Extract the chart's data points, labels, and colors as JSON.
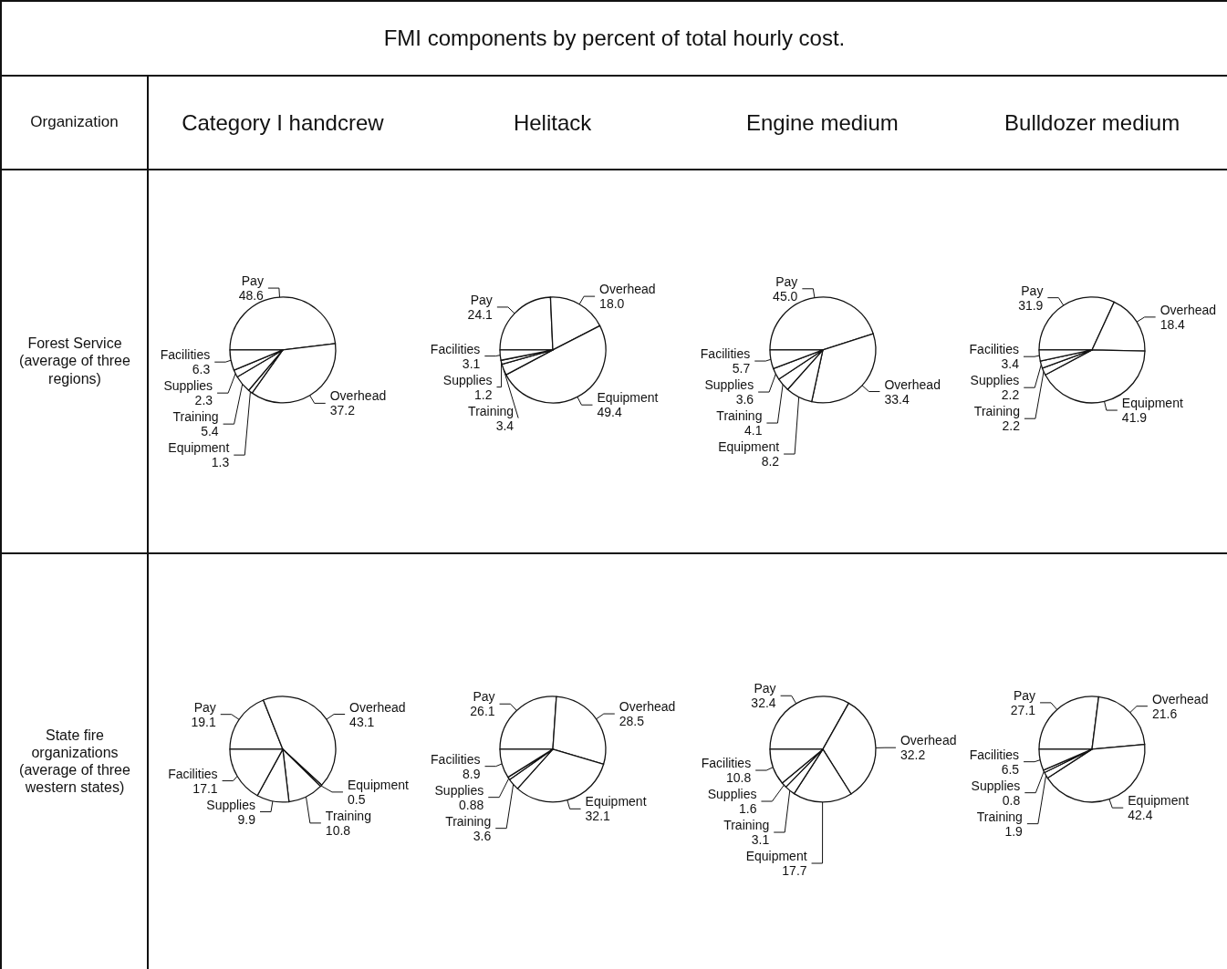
{
  "chart_data": [
    {
      "type": "pie",
      "title": "Category I handcrew",
      "annotations": [
        "FMI components by percent of total hourly cost.",
        "Organization",
        "Forest Service (average of three regions)"
      ],
      "categories": [
        "Pay",
        "Overhead",
        "Equipment",
        "Training",
        "Supplies",
        "Facilities"
      ],
      "values": [
        48.6,
        37.2,
        1.3,
        5.4,
        2.3,
        6.3
      ],
      "value_labels": [
        "48.6",
        "37.2",
        "1.3",
        "5.4",
        "2.3",
        "6.3"
      ],
      "colors": [
        "#ffffff",
        "#ffffff",
        "#ffffff",
        "#ffffff",
        "#ffffff",
        "#ffffff"
      ]
    },
    {
      "type": "pie",
      "title": "Helitack",
      "categories": [
        "Pay",
        "Overhead",
        "Equipment",
        "Training",
        "Supplies",
        "Facilities"
      ],
      "values": [
        24.1,
        18.0,
        49.4,
        3.4,
        1.2,
        3.1
      ],
      "value_labels": [
        "24.1",
        "18.0",
        "49.4",
        "3.4",
        "1.2",
        "3.1"
      ],
      "colors": [
        "#ffffff",
        "#ffffff",
        "#ffffff",
        "#ffffff",
        "#ffffff",
        "#ffffff"
      ]
    },
    {
      "type": "pie",
      "title": "Engine medium",
      "categories": [
        "Pay",
        "Overhead",
        "Equipment",
        "Training",
        "Supplies",
        "Facilities"
      ],
      "values": [
        45.0,
        33.4,
        8.2,
        4.1,
        3.6,
        5.7
      ],
      "value_labels": [
        "45.0",
        "33.4",
        "8.2",
        "4.1",
        "3.6",
        "5.7"
      ],
      "colors": [
        "#ffffff",
        "#ffffff",
        "#ffffff",
        "#ffffff",
        "#ffffff",
        "#ffffff"
      ]
    },
    {
      "type": "pie",
      "title": "Bulldozer medium",
      "categories": [
        "Pay",
        "Overhead",
        "Equipment",
        "Training",
        "Supplies",
        "Facilities"
      ],
      "values": [
        31.9,
        18.4,
        41.9,
        2.2,
        2.2,
        3.4
      ],
      "value_labels": [
        "31.9",
        "18.4",
        "41.9",
        "2.2",
        "2.2",
        "3.4"
      ],
      "colors": [
        "#ffffff",
        "#ffffff",
        "#ffffff",
        "#ffffff",
        "#ffffff",
        "#ffffff"
      ]
    },
    {
      "type": "pie",
      "annotations": [
        "State fire organizations (average of three western states)"
      ],
      "categories": [
        "Pay",
        "Overhead",
        "Equipment",
        "Training",
        "Supplies",
        "Facilities"
      ],
      "values": [
        19.1,
        43.1,
        0.5,
        10.8,
        9.9,
        17.1
      ],
      "value_labels": [
        "19.1",
        "43.1",
        "0.5",
        "10.8",
        "9.9",
        "17.1"
      ],
      "colors": [
        "#ffffff",
        "#ffffff",
        "#ffffff",
        "#ffffff",
        "#ffffff",
        "#ffffff"
      ]
    },
    {
      "type": "pie",
      "categories": [
        "Pay",
        "Overhead",
        "Equipment",
        "Training",
        "Supplies",
        "Facilities"
      ],
      "values": [
        26.1,
        28.5,
        32.1,
        3.6,
        0.88,
        8.9
      ],
      "value_labels": [
        "26.1",
        "28.5",
        "32.1",
        "3.6",
        "0.88",
        "8.9"
      ],
      "colors": [
        "#ffffff",
        "#ffffff",
        "#ffffff",
        "#ffffff",
        "#ffffff",
        "#ffffff"
      ]
    },
    {
      "type": "pie",
      "categories": [
        "Pay",
        "Overhead",
        "Equipment",
        "Training",
        "Supplies",
        "Facilities"
      ],
      "values": [
        32.4,
        32.2,
        17.7,
        3.1,
        1.6,
        10.8
      ],
      "value_labels": [
        "32.4",
        "32.2",
        "17.7",
        "3.1",
        "1.6",
        "10.8"
      ],
      "colors": [
        "#ffffff",
        "#ffffff",
        "#ffffff",
        "#ffffff",
        "#ffffff",
        "#ffffff"
      ]
    },
    {
      "type": "pie",
      "categories": [
        "Pay",
        "Overhead",
        "Equipment",
        "Training",
        "Supplies",
        "Facilities"
      ],
      "values": [
        27.1,
        21.6,
        42.4,
        1.9,
        0.8,
        6.5
      ],
      "value_labels": [
        "27.1",
        "21.6",
        "42.4",
        "1.9",
        "0.8",
        "6.5"
      ],
      "colors": [
        "#ffffff",
        "#ffffff",
        "#ffffff",
        "#ffffff",
        "#ffffff",
        "#ffffff"
      ]
    }
  ]
}
